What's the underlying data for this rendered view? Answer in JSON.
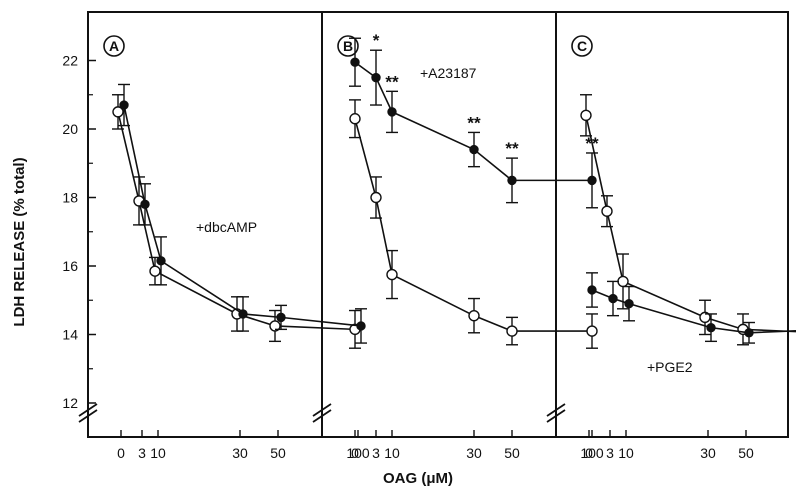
{
  "chart_data": [
    {
      "type": "line",
      "panel_label": "A",
      "annotation": "+dbcAMP",
      "x_tick_labels": [
        "0",
        "3",
        "10",
        "30",
        "50",
        "100"
      ],
      "x_tick_values": [
        0,
        3,
        10,
        30,
        50,
        100
      ],
      "ylim": [
        12,
        23
      ],
      "series": [
        {
          "marker": "open",
          "x": [
            0,
            3,
            10,
            30,
            50,
            100
          ],
          "y": [
            20.5,
            17.9,
            15.85,
            14.6,
            14.25,
            14.15
          ],
          "err": [
            0.5,
            0.7,
            0.4,
            0.5,
            0.45,
            0.55
          ]
        },
        {
          "marker": "filled",
          "x": [
            0,
            3,
            10,
            30,
            50,
            100
          ],
          "y": [
            20.7,
            17.8,
            16.15,
            14.6,
            14.5,
            14.25
          ],
          "err": [
            0.6,
            0.6,
            0.7,
            0.5,
            0.35,
            0.5
          ]
        }
      ]
    },
    {
      "type": "line",
      "panel_label": "B",
      "annotation": "+A23187",
      "x_tick_labels": [
        "0",
        "3",
        "10",
        "30",
        "50",
        "100"
      ],
      "x_tick_values": [
        0,
        3,
        10,
        30,
        50,
        100
      ],
      "ylim": [
        12,
        23
      ],
      "series": [
        {
          "marker": "open",
          "x": [
            0,
            3,
            10,
            30,
            50,
            100
          ],
          "y": [
            20.3,
            18.0,
            15.75,
            14.55,
            14.1,
            14.1
          ],
          "err": [
            0.55,
            0.6,
            0.7,
            0.5,
            0.4,
            0.5
          ]
        },
        {
          "marker": "filled",
          "x": [
            0,
            3,
            10,
            30,
            50,
            100
          ],
          "y": [
            21.95,
            21.5,
            20.5,
            19.4,
            18.5,
            18.5
          ],
          "err": [
            0.7,
            0.8,
            0.6,
            0.5,
            0.65,
            0.8
          ],
          "significance": [
            "",
            "*",
            "**",
            "**",
            "**",
            "**"
          ]
        }
      ]
    },
    {
      "type": "line",
      "panel_label": "C",
      "annotation": "+PGE2",
      "x_tick_labels": [
        "0",
        "3",
        "10",
        "30",
        "50",
        "100"
      ],
      "x_tick_values": [
        0,
        3,
        10,
        30,
        50,
        100
      ],
      "ylim": [
        12,
        23
      ],
      "series": [
        {
          "marker": "open",
          "x": [
            0,
            3,
            10,
            30,
            50,
            100
          ],
          "y": [
            20.4,
            17.6,
            15.55,
            14.5,
            14.15,
            14.05
          ],
          "err": [
            0.6,
            0.45,
            0.8,
            0.5,
            0.45,
            0.6
          ]
        },
        {
          "marker": "filled",
          "x": [
            0,
            3,
            10,
            30,
            50,
            100
          ],
          "y": [
            15.3,
            15.05,
            14.9,
            14.2,
            14.05,
            14.15
          ],
          "err": [
            0.5,
            0.5,
            0.5,
            0.4,
            0.3,
            0.3
          ]
        }
      ]
    }
  ],
  "y_axis": {
    "label": "LDH RELEASE (% total)",
    "tick_labels": [
      "12",
      "14",
      "16",
      "18",
      "20",
      "22"
    ],
    "tick_values": [
      12,
      14,
      16,
      18,
      20,
      22
    ]
  },
  "x_axis": {
    "label": "OAG (μM)"
  }
}
